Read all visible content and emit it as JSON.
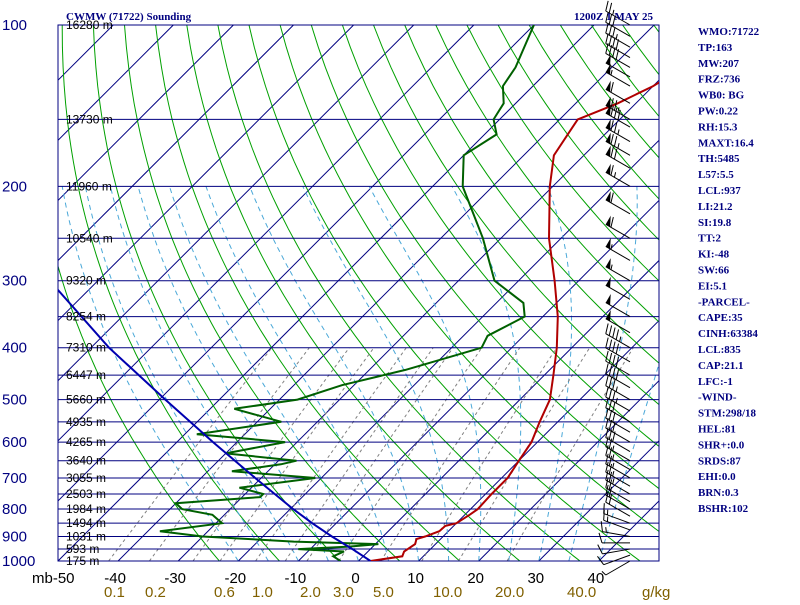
{
  "header": {
    "title": "CWMW (71722) Sounding",
    "datetime": "1200Z  1 MAY 25"
  },
  "colors": {
    "isobar": "#000080",
    "isotherm": "#000080",
    "dry_adiabat": "#00a000",
    "moist_adiabat": "#4aa8d8",
    "mixing_ratio": "#808080",
    "temperature": "#b00000",
    "dewpoint": "#006000",
    "parcel": "#0000b0",
    "frame": "#000080"
  },
  "indices": [
    "WMO:71722",
    "TP:163",
    "MW:207",
    "FRZ:736",
    "WB0: BG",
    "PW:0.22",
    "RH:15.3",
    "MAXT:16.4",
    "TH:5485",
    "L57:5.5",
    "LCL:937",
    "LI:21.2",
    "SI:19.8",
    "TT:2",
    "KI:-48",
    "SW:66",
    "EI:5.1",
    "-PARCEL-",
    "CAPE:35",
    "CINH:63384",
    "LCL:835",
    "CAP:21.1",
    "LFC:-1",
    "-WIND-",
    "STM:298/18",
    "HEL:81",
    "SHR+:0.0",
    "SRDS:87",
    "EHI:0.0",
    "BRN:0.3",
    "BSHR:102"
  ],
  "chart_data": {
    "type": "line",
    "chart_kind": "skew-T log-P sounding diagram",
    "y_axis": {
      "label": "mb",
      "scale": "log",
      "ylim": [
        1000,
        100
      ],
      "ticks": [
        100,
        200,
        300,
        400,
        500,
        600,
        700,
        800,
        900,
        1000
      ]
    },
    "x_axis": {
      "label": "",
      "unit": "°C",
      "xlim": [
        -50,
        50
      ],
      "ticks": [
        -50,
        -40,
        -30,
        -20,
        -10,
        0,
        10,
        20,
        30,
        40,
        50
      ]
    },
    "tick_label_text": {
      "pressure": [
        "100",
        "200",
        "300",
        "400",
        "500",
        "600",
        "700",
        "800",
        "900",
        "1000"
      ],
      "temperature": [
        "mb-50",
        "-40",
        "-30",
        "-20",
        "-10",
        "0",
        "10",
        "20",
        "30",
        "40"
      ],
      "mixing_ratio": [
        "0.1",
        "0.2",
        "0.6",
        "1.0",
        "2.0",
        "3.0",
        "5.0",
        "10.0",
        "20.0",
        "40.0",
        "g/kg"
      ]
    },
    "mixing_ratio_axis": {
      "label": "g/kg",
      "values": [
        0.1,
        0.2,
        0.6,
        1.0,
        2.0,
        3.0,
        5.0,
        10.0,
        20.0,
        40.0
      ]
    },
    "height_labels": [
      {
        "p": 100,
        "text": "16280 m"
      },
      {
        "p": 150,
        "text": "13730 m"
      },
      {
        "p": 200,
        "text": "11960 m"
      },
      {
        "p": 250,
        "text": "10540 m"
      },
      {
        "p": 300,
        "text": "9320 m"
      },
      {
        "p": 350,
        "text": "8254 m"
      },
      {
        "p": 400,
        "text": "7310 m"
      },
      {
        "p": 450,
        "text": "6447 m"
      },
      {
        "p": 500,
        "text": "5660 m"
      },
      {
        "p": 550,
        "text": "4935 m"
      },
      {
        "p": 600,
        "text": "4265 m"
      },
      {
        "p": 650,
        "text": "3640 m"
      },
      {
        "p": 700,
        "text": "3055 m"
      },
      {
        "p": 750,
        "text": "2503 m"
      },
      {
        "p": 800,
        "text": "1984 m"
      },
      {
        "p": 850,
        "text": "1494 m"
      },
      {
        "p": 900,
        "text": "1031 m"
      },
      {
        "p": 950,
        "text": "593 m"
      },
      {
        "p": 1000,
        "text": "175 m"
      }
    ],
    "mixing_ratio_lines": [
      0.1,
      0.2,
      0.4,
      0.6,
      1.0,
      1.5,
      2.0,
      3.0,
      5.0,
      8.0,
      12.0,
      20.0
    ],
    "series": [
      {
        "key": "temperature",
        "color": "#b00000",
        "points": [
          [
            1000,
            2.0
          ],
          [
            980,
            6.5
          ],
          [
            960,
            6.0
          ],
          [
            930,
            6.6
          ],
          [
            910,
            6.0
          ],
          [
            900,
            7.0
          ],
          [
            880,
            8.5
          ],
          [
            860,
            8.6
          ],
          [
            850,
            10.0
          ],
          [
            820,
            10.8
          ],
          [
            800,
            11.2
          ],
          [
            750,
            11.0
          ],
          [
            700,
            11.0
          ],
          [
            650,
            10.0
          ],
          [
            600,
            9.0
          ],
          [
            550,
            7.0
          ],
          [
            500,
            5.0
          ],
          [
            450,
            1.5
          ],
          [
            400,
            -2.5
          ],
          [
            350,
            -7.5
          ],
          [
            300,
            -14.0
          ],
          [
            250,
            -22.0
          ],
          [
            200,
            -30.5
          ],
          [
            175,
            -35.0
          ],
          [
            150,
            -37.0
          ],
          [
            140,
            -33.0
          ],
          [
            130,
            -30.0
          ],
          [
            120,
            -28.0
          ],
          [
            110,
            -22.0
          ],
          [
            100,
            -14.0
          ]
        ]
      },
      {
        "key": "dewpoint",
        "color": "#006000",
        "points": [
          [
            1000,
            -3.0
          ],
          [
            980,
            -5.0
          ],
          [
            960,
            -4.0
          ],
          [
            950,
            -12.0
          ],
          [
            940,
            -4.0
          ],
          [
            930,
            0.5
          ],
          [
            920,
            -14.0
          ],
          [
            900,
            -30.0
          ],
          [
            880,
            -38.0
          ],
          [
            850,
            -29.0
          ],
          [
            820,
            -32.0
          ],
          [
            800,
            -38.0
          ],
          [
            780,
            -40.0
          ],
          [
            760,
            -27.0
          ],
          [
            750,
            -27.0
          ],
          [
            730,
            -32.0
          ],
          [
            700,
            -21.0
          ],
          [
            680,
            -36.0
          ],
          [
            660,
            -29.0
          ],
          [
            650,
            -27.0
          ],
          [
            630,
            -40.0
          ],
          [
            600,
            -32.0
          ],
          [
            580,
            -48.0
          ],
          [
            550,
            -36.0
          ],
          [
            520,
            -46.0
          ],
          [
            500,
            -37.0
          ],
          [
            470,
            -32.0
          ],
          [
            440,
            -24.0
          ],
          [
            400,
            -15.0
          ],
          [
            380,
            -16.0
          ],
          [
            350,
            -13.0
          ],
          [
            330,
            -15.5
          ],
          [
            300,
            -24.0
          ],
          [
            250,
            -33.0
          ],
          [
            200,
            -45.0
          ],
          [
            175,
            -50.0
          ],
          [
            160,
            -48.0
          ],
          [
            150,
            -51.0
          ],
          [
            140,
            -52.0
          ],
          [
            130,
            -55.0
          ],
          [
            120,
            -56.0
          ],
          [
            100,
            -60.0
          ]
        ]
      },
      {
        "key": "parcel",
        "color": "#0000b0",
        "points": [
          [
            1000,
            2.0
          ],
          [
            950,
            -3.0
          ],
          [
            900,
            -8.5
          ],
          [
            850,
            -14.0
          ],
          [
            800,
            -19.5
          ],
          [
            700,
            -31.0
          ],
          [
            600,
            -44.0
          ],
          [
            500,
            -59.0
          ],
          [
            400,
            -77.0
          ],
          [
            300,
            -98.0
          ],
          [
            250,
            -111.0
          ],
          [
            200,
            -126.0
          ],
          [
            150,
            -145.0
          ],
          [
            120,
            -158.0
          ]
        ]
      }
    ],
    "wind_barbs": [
      {
        "p": 1000,
        "dir": 240,
        "spd": 5
      },
      {
        "p": 975,
        "dir": 250,
        "spd": 10
      },
      {
        "p": 950,
        "dir": 260,
        "spd": 10
      },
      {
        "p": 925,
        "dir": 270,
        "spd": 10
      },
      {
        "p": 900,
        "dir": 280,
        "spd": 15
      },
      {
        "p": 875,
        "dir": 290,
        "spd": 15
      },
      {
        "p": 850,
        "dir": 290,
        "spd": 15
      },
      {
        "p": 825,
        "dir": 300,
        "spd": 20
      },
      {
        "p": 800,
        "dir": 300,
        "spd": 20
      },
      {
        "p": 775,
        "dir": 300,
        "spd": 20
      },
      {
        "p": 750,
        "dir": 300,
        "spd": 25
      },
      {
        "p": 725,
        "dir": 300,
        "spd": 25
      },
      {
        "p": 700,
        "dir": 300,
        "spd": 25
      },
      {
        "p": 675,
        "dir": 300,
        "spd": 25
      },
      {
        "p": 650,
        "dir": 300,
        "spd": 25
      },
      {
        "p": 625,
        "dir": 300,
        "spd": 30
      },
      {
        "p": 600,
        "dir": 300,
        "spd": 30
      },
      {
        "p": 575,
        "dir": 300,
        "spd": 30
      },
      {
        "p": 550,
        "dir": 300,
        "spd": 30
      },
      {
        "p": 525,
        "dir": 300,
        "spd": 35
      },
      {
        "p": 500,
        "dir": 300,
        "spd": 35
      },
      {
        "p": 475,
        "dir": 300,
        "spd": 40
      },
      {
        "p": 450,
        "dir": 300,
        "spd": 40
      },
      {
        "p": 425,
        "dir": 300,
        "spd": 40
      },
      {
        "p": 400,
        "dir": 300,
        "spd": 45
      },
      {
        "p": 375,
        "dir": 300,
        "spd": 50
      },
      {
        "p": 350,
        "dir": 300,
        "spd": 50
      },
      {
        "p": 325,
        "dir": 300,
        "spd": 50
      },
      {
        "p": 300,
        "dir": 300,
        "spd": 55
      },
      {
        "p": 275,
        "dir": 300,
        "spd": 55
      },
      {
        "p": 250,
        "dir": 300,
        "spd": 60
      },
      {
        "p": 225,
        "dir": 300,
        "spd": 60
      },
      {
        "p": 200,
        "dir": 300,
        "spd": 65
      },
      {
        "p": 185,
        "dir": 300,
        "spd": 70
      },
      {
        "p": 175,
        "dir": 300,
        "spd": 75
      },
      {
        "p": 165,
        "dir": 300,
        "spd": 75
      },
      {
        "p": 155,
        "dir": 300,
        "spd": 80
      },
      {
        "p": 150,
        "dir": 300,
        "spd": 75
      },
      {
        "p": 140,
        "dir": 300,
        "spd": 60
      },
      {
        "p": 130,
        "dir": 300,
        "spd": 55
      },
      {
        "p": 125,
        "dir": 300,
        "spd": 50
      },
      {
        "p": 120,
        "dir": 300,
        "spd": 40
      },
      {
        "p": 115,
        "dir": 300,
        "spd": 40
      },
      {
        "p": 110,
        "dir": 300,
        "spd": 35
      },
      {
        "p": 105,
        "dir": 300,
        "spd": 30
      },
      {
        "p": 100,
        "dir": 300,
        "spd": 25
      }
    ]
  }
}
